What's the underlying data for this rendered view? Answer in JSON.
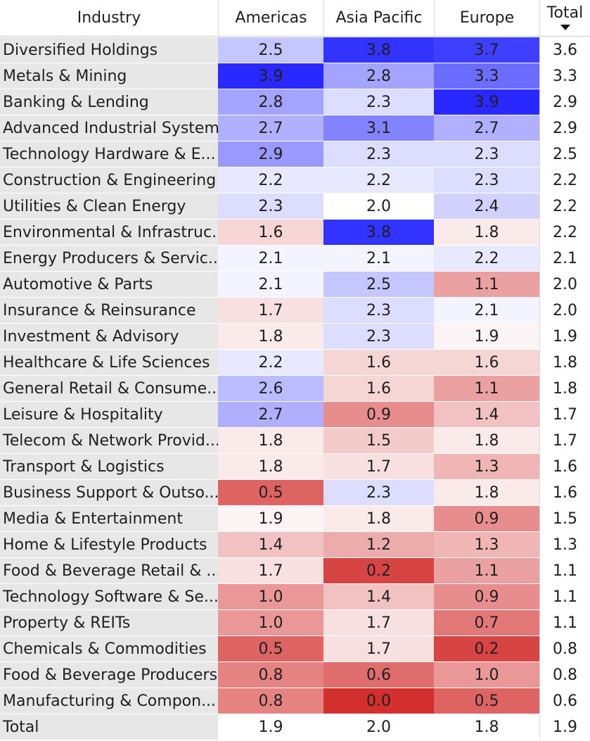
{
  "chart_data": {
    "type": "heatmap",
    "columns": {
      "industry": "Industry",
      "americas": "Americas",
      "asia_pacific": "Asia Pacific",
      "europe": "Europe",
      "total": "Total"
    },
    "sort_indicator": "sort-descending-icon",
    "color_scale": {
      "low": "#d32f2f",
      "mid": "#ffffff",
      "high": "#2828ff",
      "min": 0.0,
      "mid_value": 2.0,
      "max": 3.9
    },
    "rows": [
      {
        "industry": "Diversified Holdings",
        "americas": "2.5",
        "asia_pacific": "3.8",
        "europe": "3.7",
        "total": "3.6"
      },
      {
        "industry": "Metals & Mining",
        "americas": "3.9",
        "asia_pacific": "2.8",
        "europe": "3.3",
        "total": "3.3"
      },
      {
        "industry": "Banking & Lending",
        "americas": "2.8",
        "asia_pacific": "2.3",
        "europe": "3.9",
        "total": "2.9"
      },
      {
        "industry": "Advanced Industrial Systems",
        "americas": "2.7",
        "asia_pacific": "3.1",
        "europe": "2.7",
        "total": "2.9"
      },
      {
        "industry": "Technology Hardware & E...",
        "americas": "2.9",
        "asia_pacific": "2.3",
        "europe": "2.3",
        "total": "2.5"
      },
      {
        "industry": "Construction & Engineering",
        "americas": "2.2",
        "asia_pacific": "2.2",
        "europe": "2.3",
        "total": "2.2"
      },
      {
        "industry": "Utilities & Clean Energy",
        "americas": "2.3",
        "asia_pacific": "2.0",
        "europe": "2.4",
        "total": "2.2"
      },
      {
        "industry": "Environmental & Infrastruc...",
        "americas": "1.6",
        "asia_pacific": "3.8",
        "europe": "1.8",
        "total": "2.2"
      },
      {
        "industry": "Energy Producers & Servic...",
        "americas": "2.1",
        "asia_pacific": "2.1",
        "europe": "2.2",
        "total": "2.1"
      },
      {
        "industry": "Automotive & Parts",
        "americas": "2.1",
        "asia_pacific": "2.5",
        "europe": "1.1",
        "total": "2.0"
      },
      {
        "industry": "Insurance & Reinsurance",
        "americas": "1.7",
        "asia_pacific": "2.3",
        "europe": "2.1",
        "total": "2.0"
      },
      {
        "industry": "Investment & Advisory",
        "americas": "1.8",
        "asia_pacific": "2.3",
        "europe": "1.9",
        "total": "1.9"
      },
      {
        "industry": "Healthcare & Life Sciences",
        "americas": "2.2",
        "asia_pacific": "1.6",
        "europe": "1.6",
        "total": "1.8"
      },
      {
        "industry": "General Retail & Consume...",
        "americas": "2.6",
        "asia_pacific": "1.6",
        "europe": "1.1",
        "total": "1.8"
      },
      {
        "industry": "Leisure & Hospitality",
        "americas": "2.7",
        "asia_pacific": "0.9",
        "europe": "1.4",
        "total": "1.7"
      },
      {
        "industry": "Telecom & Network Provid...",
        "americas": "1.8",
        "asia_pacific": "1.5",
        "europe": "1.8",
        "total": "1.7"
      },
      {
        "industry": "Transport & Logistics",
        "americas": "1.8",
        "asia_pacific": "1.7",
        "europe": "1.3",
        "total": "1.6"
      },
      {
        "industry": "Business Support & Outso...",
        "americas": "0.5",
        "asia_pacific": "2.3",
        "europe": "1.8",
        "total": "1.6"
      },
      {
        "industry": "Media & Entertainment",
        "americas": "1.9",
        "asia_pacific": "1.8",
        "europe": "0.9",
        "total": "1.5"
      },
      {
        "industry": "Home & Lifestyle Products",
        "americas": "1.4",
        "asia_pacific": "1.2",
        "europe": "1.3",
        "total": "1.3"
      },
      {
        "industry": "Food & Beverage Retail & ...",
        "americas": "1.7",
        "asia_pacific": "0.2",
        "europe": "1.1",
        "total": "1.1"
      },
      {
        "industry": "Technology Software & Se...",
        "americas": "1.0",
        "asia_pacific": "1.4",
        "europe": "0.9",
        "total": "1.1"
      },
      {
        "industry": "Property & REITs",
        "americas": "1.0",
        "asia_pacific": "1.7",
        "europe": "0.7",
        "total": "1.1"
      },
      {
        "industry": "Chemicals & Commodities",
        "americas": "0.5",
        "asia_pacific": "1.7",
        "europe": "0.2",
        "total": "0.8"
      },
      {
        "industry": "Food & Beverage Producers",
        "americas": "0.8",
        "asia_pacific": "0.6",
        "europe": "1.0",
        "total": "0.8"
      },
      {
        "industry": "Manufacturing & Compon...",
        "americas": "0.8",
        "asia_pacific": "0.0",
        "europe": "0.5",
        "total": "0.6"
      }
    ],
    "total_row": {
      "industry": "Total",
      "americas": "1.9",
      "asia_pacific": "2.0",
      "europe": "1.8",
      "total": "1.9"
    }
  }
}
